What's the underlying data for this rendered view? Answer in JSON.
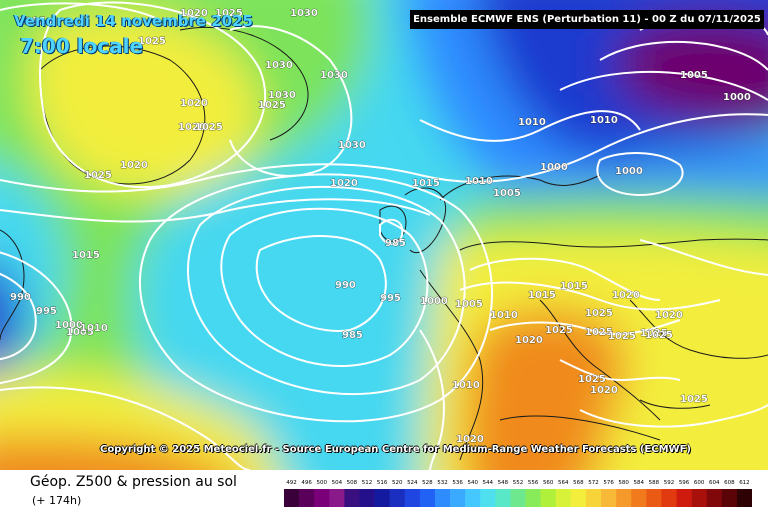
{
  "header": {
    "date": "Vendredi 14 novembre 2025",
    "local_time": "7:00 locale",
    "run_info": "Ensemble ECMWF ENS  (Perturbation 11)  -  00 Z du 07/11/2025"
  },
  "map": {
    "model": "ECMWF ENS",
    "copyright": "Copyright © 2025 Meteociel.fr - Source European Centre for Medium-Range Weather Forecasts (ECMWF)",
    "isobar_labels": [
      "1015",
      "1020",
      "1025",
      "1030",
      "1025",
      "1030",
      "1030",
      "1025",
      "1030",
      "1020",
      "1020",
      "1025",
      "1020",
      "1025",
      "1030",
      "1020",
      "1015",
      "1010",
      "1010",
      "1000",
      "1005",
      "1010",
      "1000",
      "1005",
      "1000",
      "1015",
      "985",
      "990",
      "995",
      "985",
      "1000",
      "1005",
      "1010",
      "1015",
      "1020",
      "1025",
      "1025",
      "1020",
      "1020",
      "1025",
      "1025",
      "1025",
      "1025",
      "1025",
      "1020",
      "1010",
      "1020",
      "1025",
      "1015",
      "990",
      "995",
      "1000",
      "1005",
      "1010"
    ],
    "colors": {
      "low_center": "#6d006d",
      "deep_blue": "#1f3acf",
      "mid_blue": "#2f8cff",
      "cyan": "#44d8f0",
      "green": "#7ce35a",
      "yellow": "#f3ee3c",
      "orange": "#f08a1c",
      "isobar": "#ffffff",
      "coast": "#1a1a1a"
    }
  },
  "footer": {
    "parameter": "Géop. Z500 & pression au sol",
    "lead_time": "(+ 174h)"
  },
  "scale": {
    "values": [
      "492",
      "496",
      "500",
      "504",
      "508",
      "512",
      "516",
      "520",
      "524",
      "528",
      "532",
      "536",
      "540",
      "544",
      "548",
      "552",
      "556",
      "560",
      "564",
      "568",
      "572",
      "576",
      "580",
      "584",
      "588",
      "592",
      "596",
      "600",
      "604",
      "608",
      "612"
    ],
    "colors": [
      "#3a003a",
      "#5a005a",
      "#7a007a",
      "#8a1a8a",
      "#3a1080",
      "#24108a",
      "#141aa0",
      "#1a2ec0",
      "#1f46e0",
      "#2162f5",
      "#2f8cff",
      "#39aaff",
      "#45c8ff",
      "#4fe0f0",
      "#58e8c8",
      "#6ee88e",
      "#88ec5a",
      "#b0f03a",
      "#d8f23a",
      "#f3ee3c",
      "#f7d53a",
      "#f8b838",
      "#f59a2a",
      "#f07a1c",
      "#ea5a14",
      "#e23a10",
      "#cf1a0e",
      "#a8100c",
      "#80080a",
      "#5a0408",
      "#2e0204"
    ]
  }
}
